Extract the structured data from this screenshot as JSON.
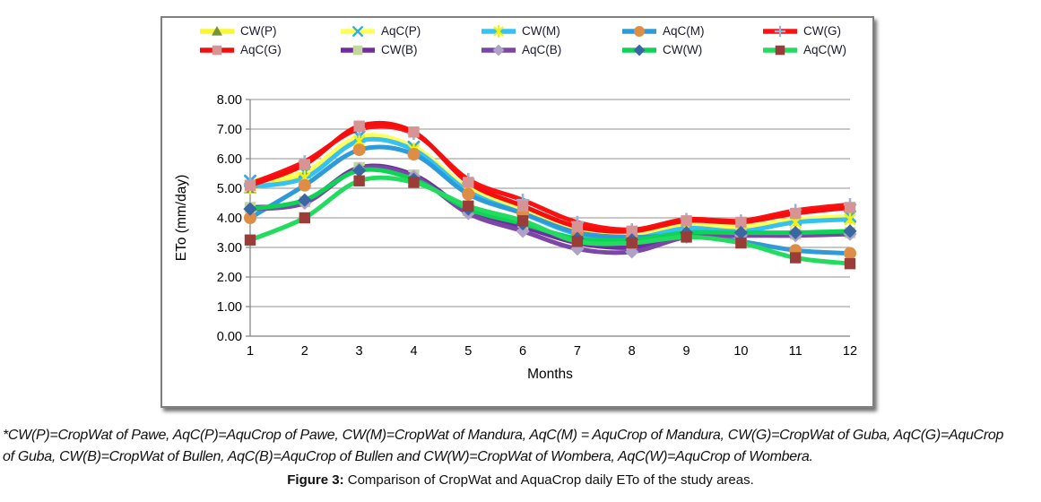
{
  "figure": {
    "note": "*CW(P)=CropWat of Pawe, AqC(P)=AquCrop of Pawe, CW(M)=CropWat of Mandura, AqC(M) = AquCrop of Mandura, CW(G)=CropWat of Guba, AqC(G)=AquCrop\nof Guba, CW(B)=CropWat of Bullen, AqC(B)=AquCrop of Bullen and CW(W)=CropWat of Wombera, AqC(W)=AquCrop of Wombera.",
    "caption_label": "Figure 3:",
    "caption_text": " Comparison of CropWat and AquaCrop daily ETo of the study areas."
  },
  "chart_data": {
    "type": "line",
    "title": "",
    "xlabel": "Months",
    "ylabel": "ETo (mm/day)",
    "x": [
      1,
      2,
      3,
      4,
      5,
      6,
      7,
      8,
      9,
      10,
      11,
      12
    ],
    "x_tick_labels": [
      "1",
      "2",
      "3",
      "4",
      "5",
      "6",
      "7",
      "8",
      "9",
      "10",
      "11",
      "12"
    ],
    "ylim": [
      0,
      8
    ],
    "y_ticks": [
      0,
      1,
      2,
      3,
      4,
      5,
      6,
      7,
      8
    ],
    "y_tick_labels": [
      "0.00",
      "1.00",
      "2.00",
      "3.00",
      "4.00",
      "5.00",
      "6.00",
      "7.00",
      "8.00"
    ],
    "grid": "horizontal",
    "smooth": true,
    "legend_position": "top",
    "legend_rows": 2,
    "colors": {
      "grid": "#a6a6a6",
      "axis": "#808080",
      "tick_text": "#000000"
    },
    "series": [
      {
        "name": "CW(P)",
        "color": "#f7f733",
        "marker": "triangle",
        "marker_color": "#76923c",
        "values": [
          5.0,
          5.5,
          6.7,
          6.35,
          4.95,
          4.25,
          3.5,
          3.35,
          3.7,
          3.65,
          3.9,
          4.0
        ]
      },
      {
        "name": "AqC(P)",
        "color": "#ffff5a",
        "marker": "x",
        "marker_color": "#33ade4",
        "values": [
          5.25,
          5.55,
          6.75,
          6.4,
          5.0,
          4.3,
          3.55,
          3.4,
          3.75,
          3.7,
          3.95,
          4.05
        ]
      },
      {
        "name": "CW(M)",
        "color": "#35c1f1",
        "marker": "asterisk",
        "marker_color": "#f2f20c",
        "values": [
          5.05,
          5.35,
          6.6,
          6.3,
          4.9,
          4.15,
          3.45,
          3.3,
          3.65,
          3.55,
          3.85,
          3.95
        ]
      },
      {
        "name": "AqC(M)",
        "color": "#2e9bd8",
        "marker": "circle",
        "marker_color": "#de8d46",
        "values": [
          4.0,
          5.1,
          6.3,
          6.15,
          4.8,
          4.15,
          3.5,
          3.35,
          3.4,
          3.2,
          2.9,
          2.8
        ]
      },
      {
        "name": "CW(G)",
        "color": "#fb1111",
        "marker": "plus",
        "marker_color": "#9ab2d8",
        "values": [
          5.15,
          5.9,
          7.0,
          6.85,
          5.3,
          4.6,
          3.85,
          3.6,
          3.95,
          3.9,
          4.25,
          4.45
        ]
      },
      {
        "name": "AqC(G)",
        "color": "#f40e0e",
        "marker": "square",
        "marker_color": "#d79494",
        "values": [
          5.1,
          5.8,
          7.1,
          6.9,
          5.2,
          4.4,
          3.7,
          3.55,
          3.9,
          3.85,
          4.15,
          4.35
        ]
      },
      {
        "name": "CW(B)",
        "color": "#6f2da0",
        "marker": "square",
        "marker_color": "#c3d69b",
        "values": [
          4.35,
          4.55,
          5.7,
          5.45,
          4.25,
          3.7,
          3.15,
          3.0,
          3.4,
          3.45,
          3.45,
          3.5
        ]
      },
      {
        "name": "AqC(B)",
        "color": "#7b46a5",
        "marker": "diamond",
        "marker_color": "#afa2c8",
        "values": [
          4.3,
          4.5,
          5.65,
          5.4,
          4.15,
          3.55,
          2.95,
          2.85,
          3.35,
          3.4,
          3.4,
          3.45
        ]
      },
      {
        "name": "CW(W)",
        "color": "#0ed455",
        "marker": "diamond",
        "marker_color": "#3a67a4",
        "values": [
          4.3,
          4.6,
          5.6,
          5.3,
          4.3,
          3.8,
          3.3,
          3.25,
          3.5,
          3.5,
          3.5,
          3.55
        ]
      },
      {
        "name": "AqC(W)",
        "color": "#23dc5f",
        "marker": "square",
        "marker_color": "#9a3c38",
        "values": [
          3.25,
          4.0,
          5.25,
          5.2,
          4.4,
          3.9,
          3.2,
          3.15,
          3.35,
          3.15,
          2.65,
          2.45
        ]
      }
    ]
  }
}
